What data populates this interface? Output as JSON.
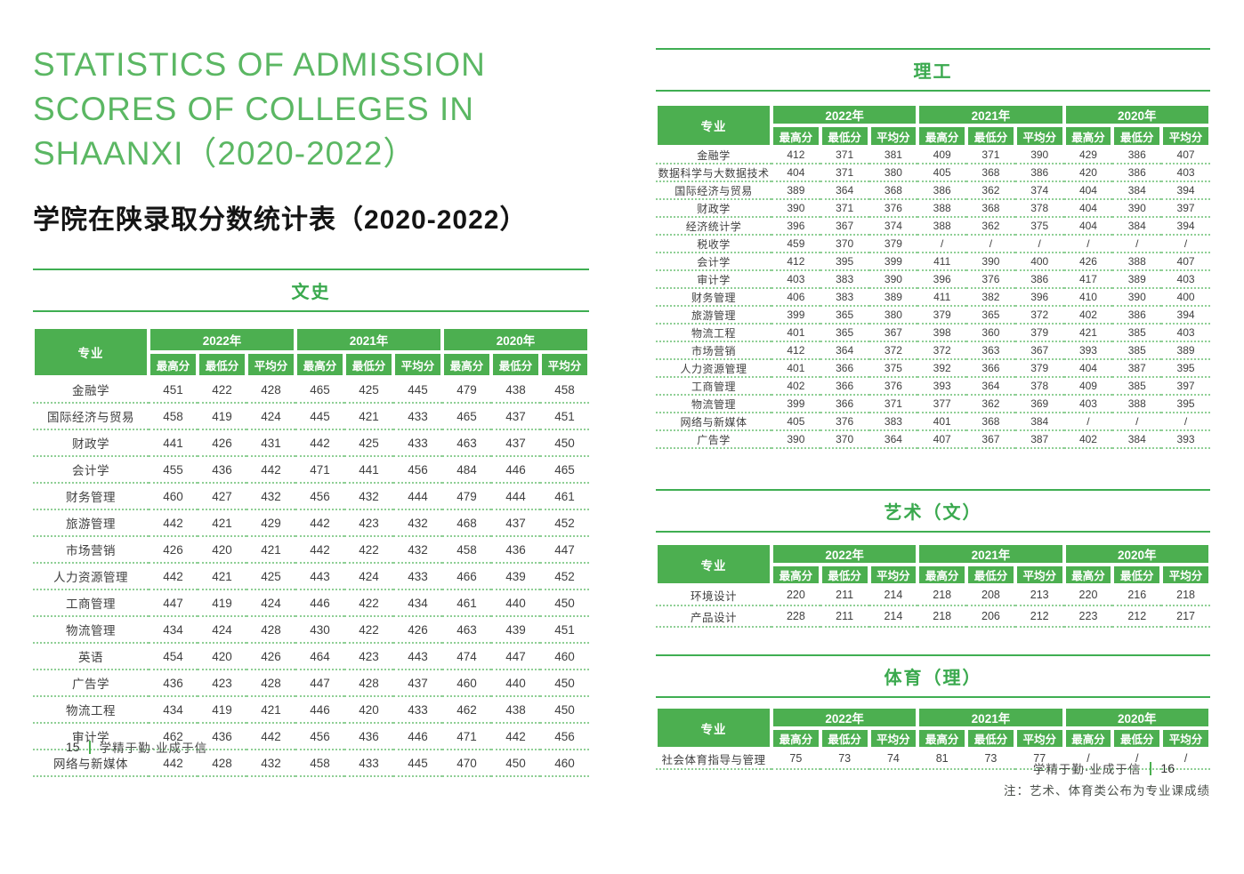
{
  "colors": {
    "accent_green": "#4caf50",
    "title_green": "#5bb763",
    "separator_green": "#8fcf95",
    "body_text": "#3f3f3f"
  },
  "left_page": {
    "title_en_lines": [
      "STATISTICS OF ADMISSION",
      "SCORES OF COLLEGES IN",
      "SHAANXI（2020-2022）"
    ],
    "title_zh": "学院在陕录取分数统计表（2020-2022）",
    "footer": {
      "page_number": "15",
      "motto": "学精于勤·业成于信"
    }
  },
  "right_page": {
    "note": "注：艺术、体育类公布为专业课成绩",
    "footer": {
      "motto": "学精于勤·业成于信",
      "page_number": "16"
    }
  },
  "table_header": {
    "major": "专业",
    "years": [
      "2022年",
      "2021年",
      "2020年"
    ],
    "subs": [
      "最高分",
      "最低分",
      "平均分"
    ]
  },
  "tables": {
    "wenshi": {
      "section": "文史",
      "rows": [
        {
          "label": "金融学",
          "values": [
            451,
            422,
            428,
            465,
            425,
            445,
            479,
            438,
            458
          ]
        },
        {
          "label": "国际经济与贸易",
          "values": [
            458,
            419,
            424,
            445,
            421,
            433,
            465,
            437,
            451
          ]
        },
        {
          "label": "财政学",
          "values": [
            441,
            426,
            431,
            442,
            425,
            433,
            463,
            437,
            450
          ]
        },
        {
          "label": "会计学",
          "values": [
            455,
            436,
            442,
            471,
            441,
            456,
            484,
            446,
            465
          ]
        },
        {
          "label": "财务管理",
          "values": [
            460,
            427,
            432,
            456,
            432,
            444,
            479,
            444,
            461
          ]
        },
        {
          "label": "旅游管理",
          "values": [
            442,
            421,
            429,
            442,
            423,
            432,
            468,
            437,
            452
          ]
        },
        {
          "label": "市场营销",
          "values": [
            426,
            420,
            421,
            442,
            422,
            432,
            458,
            436,
            447
          ]
        },
        {
          "label": "人力资源管理",
          "values": [
            442,
            421,
            425,
            443,
            424,
            433,
            466,
            439,
            452
          ]
        },
        {
          "label": "工商管理",
          "values": [
            447,
            419,
            424,
            446,
            422,
            434,
            461,
            440,
            450
          ]
        },
        {
          "label": "物流管理",
          "values": [
            434,
            424,
            428,
            430,
            422,
            426,
            463,
            439,
            451
          ]
        },
        {
          "label": "英语",
          "values": [
            454,
            420,
            426,
            464,
            423,
            443,
            474,
            447,
            460
          ]
        },
        {
          "label": "广告学",
          "values": [
            436,
            423,
            428,
            447,
            428,
            437,
            460,
            440,
            450
          ]
        },
        {
          "label": "物流工程",
          "values": [
            434,
            419,
            421,
            446,
            420,
            433,
            462,
            438,
            450
          ]
        },
        {
          "label": "审计学",
          "values": [
            462,
            436,
            442,
            456,
            436,
            446,
            471,
            442,
            456
          ]
        },
        {
          "label": "网络与新媒体",
          "values": [
            442,
            428,
            432,
            458,
            433,
            445,
            470,
            450,
            460
          ]
        }
      ]
    },
    "ligong": {
      "section": "理工",
      "rows": [
        {
          "label": "金融学",
          "values": [
            412,
            371,
            381,
            409,
            371,
            390,
            429,
            386,
            407
          ]
        },
        {
          "label": "数据科学与大数据技术",
          "values": [
            404,
            371,
            380,
            405,
            368,
            386,
            420,
            386,
            403
          ]
        },
        {
          "label": "国际经济与贸易",
          "values": [
            389,
            364,
            368,
            386,
            362,
            374,
            404,
            384,
            394
          ]
        },
        {
          "label": "财政学",
          "values": [
            390,
            371,
            376,
            388,
            368,
            378,
            404,
            390,
            397
          ]
        },
        {
          "label": "经济统计学",
          "values": [
            396,
            367,
            374,
            388,
            362,
            375,
            404,
            384,
            394
          ]
        },
        {
          "label": "税收学",
          "values": [
            459,
            370,
            379,
            "/",
            "/",
            "/",
            "/",
            "/",
            "/"
          ]
        },
        {
          "label": "会计学",
          "values": [
            412,
            395,
            399,
            411,
            390,
            400,
            426,
            388,
            407
          ]
        },
        {
          "label": "审计学",
          "values": [
            403,
            383,
            390,
            396,
            376,
            386,
            417,
            389,
            403
          ]
        },
        {
          "label": "财务管理",
          "values": [
            406,
            383,
            389,
            411,
            382,
            396,
            410,
            390,
            400
          ]
        },
        {
          "label": "旅游管理",
          "values": [
            399,
            365,
            380,
            379,
            365,
            372,
            402,
            386,
            394
          ]
        },
        {
          "label": "物流工程",
          "values": [
            401,
            365,
            367,
            398,
            360,
            379,
            421,
            385,
            403
          ]
        },
        {
          "label": "市场营销",
          "values": [
            412,
            364,
            372,
            372,
            363,
            367,
            393,
            385,
            389
          ]
        },
        {
          "label": "人力资源管理",
          "values": [
            401,
            366,
            375,
            392,
            366,
            379,
            404,
            387,
            395
          ]
        },
        {
          "label": "工商管理",
          "values": [
            402,
            366,
            376,
            393,
            364,
            378,
            409,
            385,
            397
          ]
        },
        {
          "label": "物流管理",
          "values": [
            399,
            366,
            371,
            377,
            362,
            369,
            403,
            388,
            395
          ]
        },
        {
          "label": "网络与新媒体",
          "values": [
            405,
            376,
            383,
            401,
            368,
            384,
            "/",
            "/",
            "/"
          ]
        },
        {
          "label": "广告学",
          "values": [
            390,
            370,
            364,
            407,
            367,
            387,
            402,
            384,
            393
          ]
        }
      ]
    },
    "yishu": {
      "section": "艺术（文）",
      "rows": [
        {
          "label": "环境设计",
          "values": [
            220,
            211,
            214,
            218,
            208,
            213,
            220,
            216,
            218
          ]
        },
        {
          "label": "产品设计",
          "values": [
            228,
            211,
            214,
            218,
            206,
            212,
            223,
            212,
            217
          ]
        }
      ]
    },
    "tiyu": {
      "section": "体育（理）",
      "rows": [
        {
          "label": "社会体育指导与管理",
          "values": [
            75,
            73,
            74,
            81,
            73,
            77,
            "/",
            "/",
            "/"
          ]
        }
      ]
    }
  }
}
